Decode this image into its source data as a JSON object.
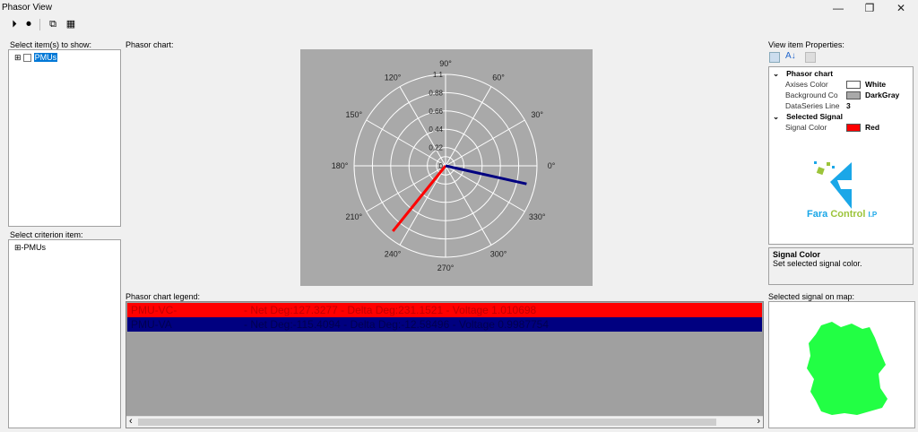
{
  "window": {
    "title": "Phasor View",
    "minimize": "—",
    "maximize": "❐",
    "close": "✕"
  },
  "toolbar": {
    "play": "⏵",
    "stop": "⏺",
    "export": "⧉",
    "save": "▦"
  },
  "left": {
    "items_label": "Select item(s) to show:",
    "items_tree": [
      {
        "label": "PMUs",
        "expander": "⊞",
        "selected": true
      }
    ],
    "criterion_label": "Select criterion item:",
    "criterion_tree": [
      {
        "label": "PMUs",
        "expander": "⊞"
      }
    ]
  },
  "chart": {
    "label": "Phasor chart:"
  },
  "chart_data": {
    "type": "polar",
    "background": "#a9a9a9",
    "axis_color": "#ffffff",
    "line_width": 3,
    "radial_ticks": [
      "0",
      "0.22",
      "0.44",
      "0.66",
      "0.88",
      "1.1"
    ],
    "rmax": 1.1,
    "angle_ticks": [
      "0°",
      "30°",
      "60°",
      "90°",
      "120°",
      "150°",
      "180°",
      "210°",
      "240°",
      "270°",
      "300°",
      "330°"
    ],
    "series": [
      {
        "name": "PMU-VC-",
        "angle_deg": 231.1521,
        "magnitude": 1.010698,
        "color": "#ff0000"
      },
      {
        "name": "PMU-VA",
        "angle_deg": -12.58496,
        "magnitude": 0.9987754,
        "color": "#000080"
      }
    ]
  },
  "legend": {
    "label": "Phasor chart legend:",
    "rows": [
      {
        "name": "PMU-VC-",
        "text": "- Net Deg:127.3277 - Delta Deg:231.1521 - Voltage 1.010698",
        "bg": "#ff0000",
        "fg": "#c00000"
      },
      {
        "name": "PMU-VA",
        "text": "- Net Deg:-115.4094 - Delta Deg:-12.58496 - Voltage 0.9987754",
        "bg": "#000080",
        "fg": "#000050"
      }
    ],
    "scroll_left": "‹",
    "scroll_right": "›"
  },
  "properties": {
    "label": "View item Properties:",
    "categories": [
      {
        "name": "Phasor chart",
        "props": [
          {
            "name": "Axises Color",
            "value": "White",
            "swatch": "#ffffff"
          },
          {
            "name": "Background Co",
            "value": "DarkGray",
            "swatch": "#a9a9a9"
          },
          {
            "name": "DataSeries Line",
            "value": "3"
          }
        ]
      },
      {
        "name": "Selected Signal",
        "props": [
          {
            "name": "Signal Color",
            "value": "Red",
            "swatch": "#ff0000"
          }
        ]
      }
    ],
    "logo": {
      "text1": "Fara",
      "text2": "Control",
      "text3": "I.P"
    },
    "desc_title": "Signal Color",
    "desc_text": "Set selected signal color."
  },
  "map": {
    "label": "Selected signal on map:",
    "fill": "#22ff44"
  }
}
